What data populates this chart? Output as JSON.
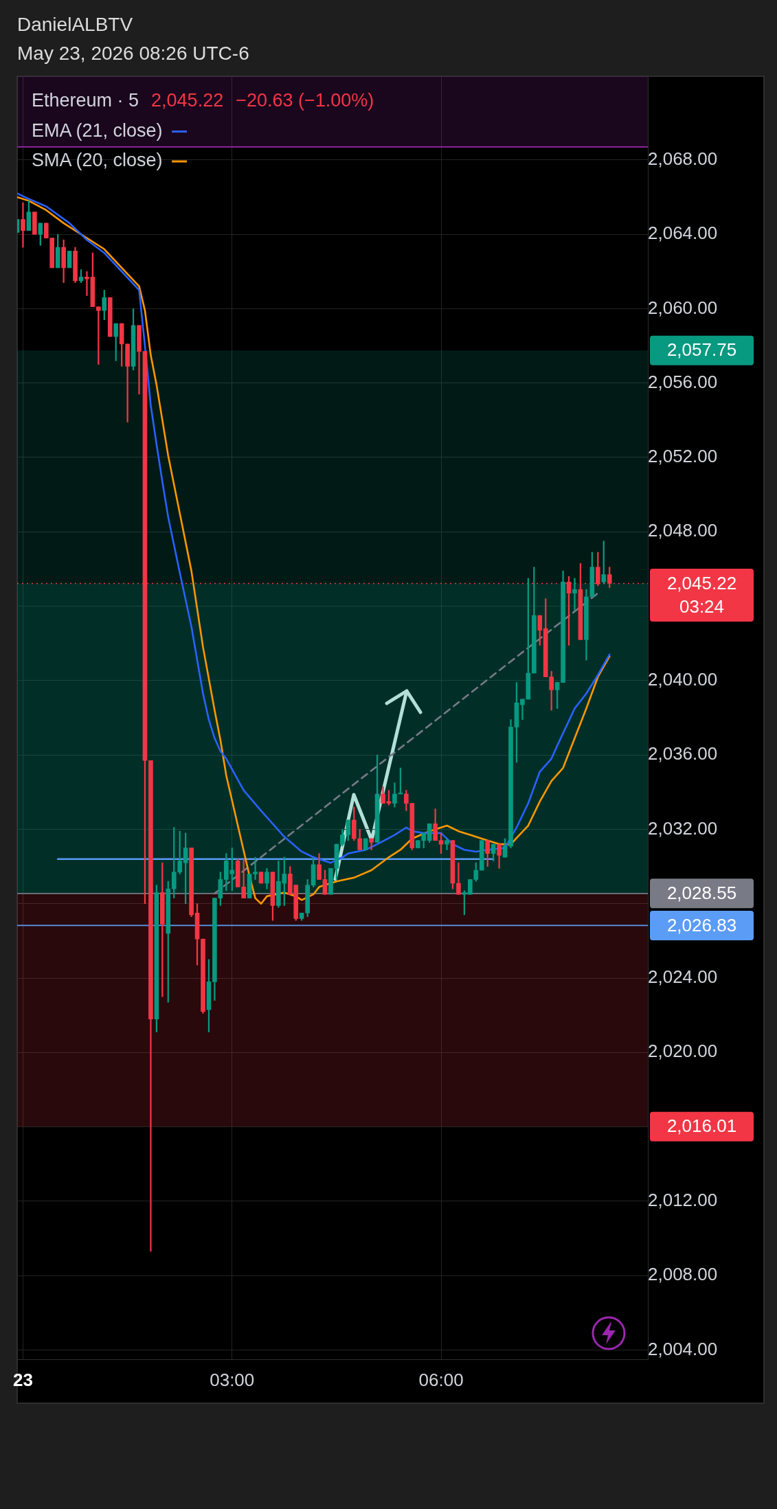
{
  "chart_data": {
    "type": "candlestick",
    "title": "DanielALBTV",
    "subtitle": "May 23, 2026 08:26 UTC-6",
    "legend_title": "Ethereum · 5",
    "annotations": [
      "2,045.22",
      "−20.63 (−1.00%)"
    ],
    "x": [
      "2026-05-22T23:55",
      "2026-05-23T00:00",
      "2026-05-23T00:05",
      "2026-05-23T00:10",
      "2026-05-23T00:15",
      "2026-05-23T00:20",
      "2026-05-23T00:25",
      "2026-05-23T00:30",
      "2026-05-23T00:35",
      "2026-05-23T00:40",
      "2026-05-23T00:45",
      "2026-05-23T00:50",
      "2026-05-23T00:55",
      "2026-05-23T01:00",
      "2026-05-23T01:05",
      "2026-05-23T01:10",
      "2026-05-23T01:15",
      "2026-05-23T01:20",
      "2026-05-23T01:25",
      "2026-05-23T01:30",
      "2026-05-23T01:35",
      "2026-05-23T01:40",
      "2026-05-23T01:45",
      "2026-05-23T01:50",
      "2026-05-23T01:55",
      "2026-05-23T02:00",
      "2026-05-23T02:05",
      "2026-05-23T02:10",
      "2026-05-23T02:15",
      "2026-05-23T02:20",
      "2026-05-23T02:25",
      "2026-05-23T02:30",
      "2026-05-23T02:35",
      "2026-05-23T02:40",
      "2026-05-23T02:45",
      "2026-05-23T02:50",
      "2026-05-23T02:55",
      "2026-05-23T03:00",
      "2026-05-23T03:05",
      "2026-05-23T03:10",
      "2026-05-23T03:15",
      "2026-05-23T03:20",
      "2026-05-23T03:25",
      "2026-05-23T03:30",
      "2026-05-23T03:35",
      "2026-05-23T03:40",
      "2026-05-23T03:45",
      "2026-05-23T03:50",
      "2026-05-23T03:55",
      "2026-05-23T04:00",
      "2026-05-23T04:05",
      "2026-05-23T04:10",
      "2026-05-23T04:15",
      "2026-05-23T04:20",
      "2026-05-23T04:25",
      "2026-05-23T04:30",
      "2026-05-23T04:35",
      "2026-05-23T04:40",
      "2026-05-23T04:45",
      "2026-05-23T04:50",
      "2026-05-23T04:55",
      "2026-05-23T05:00",
      "2026-05-23T05:05",
      "2026-05-23T05:10",
      "2026-05-23T05:15",
      "2026-05-23T05:20",
      "2026-05-23T05:25",
      "2026-05-23T05:30",
      "2026-05-23T05:35",
      "2026-05-23T05:40",
      "2026-05-23T05:45",
      "2026-05-23T05:50",
      "2026-05-23T05:55",
      "2026-05-23T06:00",
      "2026-05-23T06:05",
      "2026-05-23T06:10",
      "2026-05-23T06:15",
      "2026-05-23T06:20",
      "2026-05-23T06:25",
      "2026-05-23T06:30",
      "2026-05-23T06:35",
      "2026-05-23T06:40",
      "2026-05-23T06:45",
      "2026-05-23T06:50",
      "2026-05-23T06:55",
      "2026-05-23T07:00",
      "2026-05-23T07:05",
      "2026-05-23T07:10",
      "2026-05-23T07:15",
      "2026-05-23T07:20",
      "2026-05-23T07:25",
      "2026-05-23T07:30",
      "2026-05-23T07:35",
      "2026-05-23T07:40",
      "2026-05-23T07:45",
      "2026-05-23T07:50",
      "2026-05-23T07:55",
      "2026-05-23T08:00",
      "2026-05-23T08:05",
      "2026-05-23T08:10",
      "2026-05-23T08:15",
      "2026-05-23T08:20",
      "2026-05-23T08:25"
    ],
    "ohlc": [
      [
        2064.1,
        2064.8,
        2064.1,
        2064.8
      ],
      [
        2064.8,
        2065.7,
        2063.3,
        2064.2
      ],
      [
        2064.2,
        2065.8,
        2064.2,
        2065.2
      ],
      [
        2065.2,
        2065.2,
        2064.0,
        2064.0
      ],
      [
        2064.0,
        2064.6,
        2063.4,
        2064.6
      ],
      [
        2064.6,
        2064.6,
        2063.8,
        2063.8
      ],
      [
        2063.8,
        2063.8,
        2062.2,
        2062.2
      ],
      [
        2062.2,
        2064.0,
        2062.2,
        2063.3
      ],
      [
        2063.3,
        2063.7,
        2061.4,
        2062.2
      ],
      [
        2062.2,
        2063.1,
        2062.2,
        2063.1
      ],
      [
        2063.1,
        2063.3,
        2061.4,
        2061.5
      ],
      [
        2061.5,
        2062.1,
        2061.4,
        2061.7
      ],
      [
        2061.7,
        2062.0,
        2060.7,
        2061.6
      ],
      [
        2061.7,
        2063.0,
        2060.1,
        2060.1
      ],
      [
        2060.1,
        2060.1,
        2057.0,
        2059.9
      ],
      [
        2059.9,
        2061.0,
        2059.4,
        2060.6
      ],
      [
        2060.6,
        2060.6,
        2058.5,
        2058.5
      ],
      [
        2058.5,
        2059.2,
        2057.2,
        2059.2
      ],
      [
        2059.2,
        2059.2,
        2056.9,
        2058.1
      ],
      [
        2058.1,
        2058.1,
        2053.9,
        2056.9
      ],
      [
        2056.9,
        2060.0,
        2056.7,
        2059.1
      ],
      [
        2059.1,
        2059.1,
        2055.4,
        2057.7
      ],
      [
        2057.7,
        2057.7,
        2028.0,
        2035.7
      ],
      [
        2035.7,
        2035.7,
        2009.3,
        2021.8
      ],
      [
        2021.8,
        2029.0,
        2021.1,
        2028.6
      ],
      [
        2028.6,
        2030.2,
        2023.0,
        2026.9
      ],
      [
        2026.4,
        2029.2,
        2022.7,
        2028.8
      ],
      [
        2028.8,
        2032.1,
        2028.3,
        2029.7
      ],
      [
        2029.7,
        2031.9,
        2029.6,
        2030.3
      ],
      [
        2030.2,
        2031.8,
        2028.0,
        2031.0
      ],
      [
        2031.0,
        2031.0,
        2027.3,
        2027.4
      ],
      [
        2027.5,
        2028.0,
        2024.7,
        2026.1
      ],
      [
        2026.1,
        2026.1,
        2022.1,
        2022.2
      ],
      [
        2022.3,
        2025.0,
        2021.1,
        2023.8
      ],
      [
        2023.8,
        2028.3,
        2022.8,
        2028.3
      ],
      [
        2028.3,
        2029.7,
        2027.9,
        2029.3
      ],
      [
        2029.3,
        2030.7,
        2028.7,
        2030.3
      ],
      [
        2029.6,
        2031.0,
        2028.7,
        2029.8
      ],
      [
        2030.3,
        2030.4,
        2028.9,
        2028.9
      ],
      [
        2028.9,
        2030.4,
        2028.3,
        2028.3
      ],
      [
        2028.3,
        2029.6,
        2028.3,
        2029.6
      ],
      [
        2029.6,
        2030.5,
        2029.3,
        2029.7
      ],
      [
        2029.7,
        2029.7,
        2029.1,
        2029.1
      ],
      [
        2029.1,
        2029.9,
        2028.8,
        2029.7
      ],
      [
        2029.7,
        2029.7,
        2027.1,
        2027.9
      ],
      [
        2027.9,
        2030.3,
        2027.8,
        2029.2
      ],
      [
        2029.1,
        2030.5,
        2027.9,
        2029.6
      ],
      [
        2029.6,
        2030.0,
        2028.5,
        2028.5
      ],
      [
        2029.0,
        2029.0,
        2027.1,
        2027.2
      ],
      [
        2027.2,
        2027.5,
        2027.1,
        2027.5
      ],
      [
        2027.5,
        2029.3,
        2027.3,
        2029.0
      ],
      [
        2029.0,
        2030.5,
        2028.9,
        2030.1
      ],
      [
        2030.1,
        2030.7,
        2029.3,
        2029.3
      ],
      [
        2029.3,
        2029.8,
        2028.5,
        2028.5
      ],
      [
        2028.5,
        2029.9,
        2028.5,
        2029.9
      ],
      [
        2029.9,
        2031.2,
        2029.3,
        2031.2
      ],
      [
        2031.2,
        2032.0,
        2031.1,
        2031.7
      ],
      [
        2031.7,
        2032.5,
        2031.4,
        2032.5
      ],
      [
        2032.5,
        2033.2,
        2031.4,
        2031.5
      ],
      [
        2031.5,
        2032.0,
        2030.9,
        2030.9
      ],
      [
        2030.9,
        2031.5,
        2030.9,
        2031.5
      ],
      [
        2031.5,
        2031.5,
        2030.9,
        2031.3
      ],
      [
        2031.3,
        2036.0,
        2031.3,
        2033.9
      ],
      [
        2033.9,
        2034.3,
        2033.4,
        2033.4
      ],
      [
        2033.5,
        2034.1,
        2033.3,
        2033.4
      ],
      [
        2033.4,
        2034.5,
        2033.2,
        2033.9
      ],
      [
        2033.9,
        2035.3,
        2033.9,
        2033.9
      ],
      [
        2033.9,
        2034.1,
        2033.0,
        2033.4
      ],
      [
        2033.4,
        2033.4,
        2030.9,
        2031.0
      ],
      [
        2031.0,
        2031.4,
        2031.0,
        2031.4
      ],
      [
        2031.4,
        2031.8,
        2031.0,
        2031.8
      ],
      [
        2031.4,
        2032.3,
        2031.3,
        2032.3
      ],
      [
        2032.3,
        2033.1,
        2031.4,
        2031.4
      ],
      [
        2031.4,
        2031.8,
        2030.7,
        2031.2
      ],
      [
        2031.2,
        2031.5,
        2030.9,
        2031.4
      ],
      [
        2031.4,
        2031.4,
        2028.8,
        2029.1
      ],
      [
        2029.1,
        2030.2,
        2028.5,
        2028.5
      ],
      [
        2028.5,
        2028.7,
        2027.4,
        2028.6
      ],
      [
        2028.5,
        2029.3,
        2028.5,
        2029.3
      ],
      [
        2029.3,
        2030.2,
        2029.2,
        2029.8
      ],
      [
        2029.8,
        2031.4,
        2029.8,
        2031.4
      ],
      [
        2031.4,
        2031.4,
        2030.0,
        2030.7
      ],
      [
        2030.7,
        2031.2,
        2030.3,
        2031.2
      ],
      [
        2031.2,
        2031.2,
        2029.9,
        2030.6
      ],
      [
        2030.5,
        2031.5,
        2030.5,
        2031.1
      ],
      [
        2031.1,
        2037.9,
        2031.0,
        2037.5
      ],
      [
        2037.5,
        2039.9,
        2035.6,
        2038.8
      ],
      [
        2038.7,
        2039.0,
        2037.9,
        2039.0
      ],
      [
        2039.0,
        2045.5,
        2039.0,
        2040.4
      ],
      [
        2040.4,
        2046.1,
        2040.4,
        2043.5
      ],
      [
        2043.5,
        2043.5,
        2041.9,
        2042.7
      ],
      [
        2042.8,
        2044.4,
        2040.2,
        2040.2
      ],
      [
        2040.2,
        2040.5,
        2038.4,
        2039.5
      ],
      [
        2039.5,
        2039.9,
        2038.5,
        2039.9
      ],
      [
        2039.9,
        2045.9,
        2039.9,
        2045.3
      ],
      [
        2045.3,
        2045.6,
        2041.9,
        2044.7
      ],
      [
        2044.7,
        2045.5,
        2043.8,
        2044.9
      ],
      [
        2044.9,
        2046.3,
        2042.2,
        2042.2
      ],
      [
        2042.2,
        2044.9,
        2041.1,
        2044.5
      ],
      [
        2044.5,
        2046.9,
        2044.5,
        2046.1
      ],
      [
        2046.1,
        2046.9,
        2045.1,
        2045.2
      ],
      [
        2045.3,
        2047.5,
        2045.2,
        2045.7
      ],
      [
        2045.7,
        2046.1,
        2045.0,
        2045.22
      ]
    ],
    "colors": [
      "#089981",
      "#f23645",
      "#089981",
      "#f23645",
      "#089981",
      "#f23645",
      "#f23645",
      "#089981",
      "#f23645",
      "#089981",
      "#f23645",
      "#089981",
      "#f23645",
      "#f23645",
      "#f23645",
      "#089981",
      "#f23645",
      "#089981",
      "#f23645",
      "#f23645",
      "#089981",
      "#f23645",
      "#f23645",
      "#f23645",
      "#089981",
      "#f23645",
      "#089981",
      "#089981",
      "#089981",
      "#089981",
      "#f23645",
      "#f23645",
      "#f23645",
      "#089981",
      "#089981",
      "#089981",
      "#089981",
      "#089981",
      "#f23645",
      "#f23645",
      "#089981",
      "#089981",
      "#f23645",
      "#089981",
      "#f23645",
      "#089981",
      "#089981",
      "#f23645",
      "#f23645",
      "#089981",
      "#089981",
      "#089981",
      "#f23645",
      "#f23645",
      "#089981",
      "#089981",
      "#089981",
      "#089981",
      "#f23645",
      "#f23645",
      "#089981",
      "#f23645",
      "#089981",
      "#f23645",
      "#f23645",
      "#089981",
      "#089981",
      "#f23645",
      "#f23645",
      "#089981",
      "#089981",
      "#089981",
      "#f23645",
      "#f23645",
      "#089981",
      "#f23645",
      "#f23645",
      "#089981",
      "#089981",
      "#089981",
      "#089981",
      "#f23645",
      "#089981",
      "#f23645",
      "#089981",
      "#089981",
      "#089981",
      "#089981",
      "#089981",
      "#089981",
      "#f23645",
      "#f23645",
      "#f23645",
      "#089981",
      "#089981",
      "#f23645",
      "#089981",
      "#f23645",
      "#089981",
      "#089981",
      "#f23645",
      "#089981",
      "#f23645"
    ],
    "series": [
      {
        "name": "EMA (21, close)",
        "type": "line",
        "color": "#2962ff",
        "x": [
          "2026-05-22T23:55",
          "2026-05-23T00:05",
          "2026-05-23T00:20",
          "2026-05-23T00:40",
          "2026-05-23T00:55",
          "2026-05-23T01:10",
          "2026-05-23T01:25",
          "2026-05-23T01:40",
          "2026-05-23T01:45",
          "2026-05-23T01:50",
          "2026-05-23T01:55",
          "2026-05-23T02:00",
          "2026-05-23T02:05",
          "2026-05-23T02:15",
          "2026-05-23T02:25",
          "2026-05-23T02:35",
          "2026-05-23T02:40",
          "2026-05-23T02:45",
          "2026-05-23T02:50",
          "2026-05-23T02:55",
          "2026-05-23T03:10",
          "2026-05-23T03:25",
          "2026-05-23T03:35",
          "2026-05-23T03:45",
          "2026-05-23T04:00",
          "2026-05-23T04:10",
          "2026-05-23T04:20",
          "2026-05-23T04:25",
          "2026-05-23T04:35",
          "2026-05-23T04:40",
          "2026-05-23T04:55",
          "2026-05-23T05:05",
          "2026-05-23T05:20",
          "2026-05-23T05:30",
          "2026-05-23T05:35",
          "2026-05-23T05:45",
          "2026-05-23T06:00",
          "2026-05-23T06:10",
          "2026-05-23T06:20",
          "2026-05-23T06:30",
          "2026-05-23T06:40",
          "2026-05-23T06:55",
          "2026-05-23T07:05",
          "2026-05-23T07:15",
          "2026-05-23T07:25",
          "2026-05-23T07:35",
          "2026-05-23T07:40",
          "2026-05-23T07:55",
          "2026-05-23T08:05",
          "2026-05-23T08:15",
          "2026-05-23T08:25"
        ],
        "values": [
          2066.2,
          2065.9,
          2065.5,
          2064.6,
          2063.7,
          2063.0,
          2062.0,
          2061.0,
          2058.0,
          2054.8,
          2052.7,
          2050.7,
          2048.8,
          2045.8,
          2042.9,
          2039.3,
          2037.9,
          2036.9,
          2036.2,
          2035.8,
          2034.1,
          2033.0,
          2032.3,
          2031.6,
          2030.8,
          2030.5,
          2030.3,
          2030.2,
          2030.5,
          2030.7,
          2030.9,
          2031.2,
          2031.7,
          2032.1,
          2031.9,
          2031.8,
          2031.8,
          2031.2,
          2030.9,
          2030.8,
          2030.9,
          2031.0,
          2032.1,
          2033.4,
          2035.1,
          2035.8,
          2036.5,
          2038.5,
          2039.3,
          2040.3,
          2041.4
        ]
      },
      {
        "name": "SMA (20, close)",
        "type": "line",
        "color": "#ff9800",
        "x": [
          "2026-05-22T23:55",
          "2026-05-23T00:05",
          "2026-05-23T00:20",
          "2026-05-23T00:35",
          "2026-05-23T00:55",
          "2026-05-23T01:10",
          "2026-05-23T01:25",
          "2026-05-23T01:40",
          "2026-05-23T01:45",
          "2026-05-23T01:50",
          "2026-05-23T01:55",
          "2026-05-23T02:05",
          "2026-05-23T02:15",
          "2026-05-23T02:25",
          "2026-05-23T02:35",
          "2026-05-23T02:45",
          "2026-05-23T02:50",
          "2026-05-23T02:55",
          "2026-05-23T03:05",
          "2026-05-23T03:15",
          "2026-05-23T03:20",
          "2026-05-23T03:25",
          "2026-05-23T03:30",
          "2026-05-23T03:45",
          "2026-05-23T03:55",
          "2026-05-23T04:00",
          "2026-05-23T04:10",
          "2026-05-23T04:15",
          "2026-05-23T04:30",
          "2026-05-23T04:45",
          "2026-05-23T05:00",
          "2026-05-23T05:15",
          "2026-05-23T05:25",
          "2026-05-23T05:35",
          "2026-05-23T05:50",
          "2026-05-23T06:00",
          "2026-05-23T06:05",
          "2026-05-23T06:15",
          "2026-05-23T06:25",
          "2026-05-23T06:35",
          "2026-05-23T06:50",
          "2026-05-23T07:00",
          "2026-05-23T07:15",
          "2026-05-23T07:25",
          "2026-05-23T07:35",
          "2026-05-23T07:45",
          "2026-05-23T07:55",
          "2026-05-23T08:05",
          "2026-05-23T08:15",
          "2026-05-23T08:25"
        ],
        "values": [
          2066.0,
          2065.8,
          2065.3,
          2064.6,
          2063.8,
          2063.2,
          2062.2,
          2061.2,
          2059.9,
          2057.5,
          2055.9,
          2052.1,
          2049.0,
          2045.9,
          2041.8,
          2038.4,
          2036.8,
          2034.9,
          2032.2,
          2029.5,
          2028.3,
          2028.0,
          2028.4,
          2028.6,
          2028.4,
          2028.2,
          2028.5,
          2028.9,
          2029.2,
          2029.4,
          2029.8,
          2030.5,
          2030.9,
          2031.5,
          2031.9,
          2032.1,
          2032.2,
          2031.9,
          2031.7,
          2031.5,
          2031.2,
          2031.2,
          2032.2,
          2033.5,
          2034.6,
          2035.3,
          2036.9,
          2038.5,
          2040.2,
          2041.3
        ]
      },
      {
        "type": "line",
        "color": "#5b9cf6",
        "x": [
          "2026-05-23T00:30",
          "2026-05-23T06:45"
        ],
        "values": [
          2030.4,
          2030.4
        ]
      },
      {
        "type": "line",
        "color": "#787b86",
        "line_style": "dashed",
        "x": [
          "2026-05-23T02:45",
          "2026-05-23T08:15"
        ],
        "values": [
          2028.55,
          2044.7
        ]
      }
    ],
    "xlim": [
      "2026-05-22T23:55",
      "2026-05-23T08:58"
    ],
    "xticks": [
      {
        "value": "2026-05-23T00:00",
        "label": "23"
      },
      {
        "value": "2026-05-23T03:00",
        "label": "03:00"
      },
      {
        "value": "2026-05-23T06:00",
        "label": "06:00"
      }
    ],
    "ylim": [
      2003.5,
      2072.5
    ],
    "yticks": [
      {
        "value": 2004,
        "label": "2,004.00"
      },
      {
        "value": 2008,
        "label": "2,008.00"
      },
      {
        "value": 2012,
        "label": "2,012.00"
      },
      {
        "value": 2016,
        "label": null
      },
      {
        "value": 2020,
        "label": "2,020.00"
      },
      {
        "value": 2024,
        "label": "2,024.00"
      },
      {
        "value": 2028,
        "label": null
      },
      {
        "value": 2032,
        "label": "2,032.00"
      },
      {
        "value": 2036,
        "label": "2,036.00"
      },
      {
        "value": 2040,
        "label": "2,040.00"
      },
      {
        "value": 2044,
        "label": null
      },
      {
        "value": 2048,
        "label": "2,048.00"
      },
      {
        "value": 2052,
        "label": "2,052.00"
      },
      {
        "value": 2056,
        "label": "2,056.00"
      },
      {
        "value": 2060,
        "label": "2,060.00"
      },
      {
        "value": 2064,
        "label": "2,064.00"
      },
      {
        "value": 2068,
        "label": "2,068.00"
      }
    ],
    "grid": true,
    "legend": "top left",
    "bands": [
      {
        "axis": "y",
        "from": 2028.55,
        "to": 2057.75,
        "color": "#089981",
        "label": "2,057.75"
      },
      {
        "axis": "y",
        "from": 2028.55,
        "to": 2045.22,
        "color": "#089981"
      },
      {
        "axis": "y",
        "from": 2028.55,
        "to": 2016.01,
        "color": "#f23645",
        "label": "2,016.01"
      },
      {
        "axis": "y",
        "from": 2068.7,
        "to": 2072.5,
        "color": "#9c27b0"
      }
    ],
    "ref_lines": [
      {
        "axis": "y",
        "value": 2068.7,
        "color": "#9c27b0"
      },
      {
        "axis": "y",
        "value": 2045.22,
        "color": "#f23645",
        "line_style": "dotted",
        "label": "2,045.22\n03:24"
      },
      {
        "axis": "y",
        "value": 2028.55,
        "color": "#787b86",
        "label": "2,028.55"
      },
      {
        "axis": "y",
        "value": 2026.83,
        "color": "#5b9cf6",
        "label": "2,026.83"
      }
    ]
  }
}
